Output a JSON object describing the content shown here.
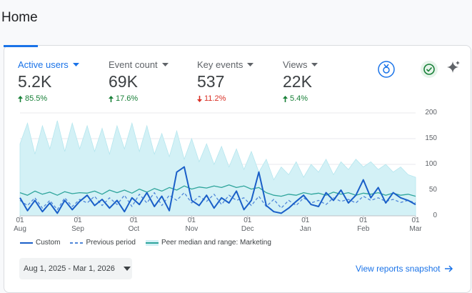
{
  "page_title": "Home",
  "metrics": [
    {
      "label": "Active users",
      "value": "5.2K",
      "change": "85.5%",
      "direction": "up",
      "active": true
    },
    {
      "label": "Event count",
      "value": "69K",
      "change": "17.6%",
      "direction": "up",
      "active": false
    },
    {
      "label": "Key events",
      "value": "537",
      "change": "11.2%",
      "direction": "down",
      "active": false
    },
    {
      "label": "Views",
      "value": "22K",
      "change": "5.4%",
      "direction": "up",
      "active": false
    }
  ],
  "chart_data": {
    "type": "line",
    "x": [
      0,
      4,
      8,
      12,
      16,
      20,
      24,
      28,
      32,
      36,
      40,
      44,
      48,
      52,
      56,
      60,
      64,
      68,
      72,
      76,
      80,
      84,
      88,
      92,
      96,
      100,
      104,
      108,
      112,
      116,
      120,
      124,
      128,
      132,
      136,
      140,
      144,
      148,
      152,
      156,
      160,
      164,
      168,
      172,
      176,
      180,
      184,
      188,
      192,
      196,
      200,
      204,
      208,
      212
    ],
    "xlim": [
      0,
      212
    ],
    "xticks": [
      {
        "value": 0,
        "label": "01\nAug"
      },
      {
        "value": 31,
        "label": "01\nSep"
      },
      {
        "value": 61,
        "label": "01\nOct"
      },
      {
        "value": 92,
        "label": "01\nNov"
      },
      {
        "value": 122,
        "label": "01\nDec"
      },
      {
        "value": 153,
        "label": "01\nJan"
      },
      {
        "value": 184,
        "label": "01\nFeb"
      },
      {
        "value": 212,
        "label": "01\nMar"
      }
    ],
    "ylim": [
      0,
      200
    ],
    "yticks": [
      0,
      50,
      100,
      150,
      200
    ],
    "grid": true,
    "series": [
      {
        "name": "Custom",
        "color": "#1a5fc8",
        "style": "solid",
        "values": [
          35,
          10,
          30,
          8,
          25,
          5,
          30,
          12,
          28,
          40,
          20,
          32,
          15,
          30,
          8,
          35,
          22,
          45,
          18,
          38,
          10,
          85,
          95,
          30,
          20,
          40,
          15,
          35,
          25,
          48,
          12,
          30,
          85,
          20,
          8,
          5,
          15,
          28,
          40,
          22,
          18,
          45,
          30,
          50,
          25,
          40,
          70,
          35,
          55,
          25,
          45,
          35,
          30,
          22
        ]
      },
      {
        "name": "Previous period",
        "color": "#4f86d9",
        "style": "dashed",
        "values": [
          30,
          20,
          35,
          15,
          30,
          12,
          35,
          18,
          32,
          25,
          38,
          20,
          35,
          22,
          40,
          18,
          42,
          25,
          45,
          20,
          40,
          30,
          45,
          25,
          38,
          28,
          42,
          22,
          40,
          30,
          35,
          20,
          38,
          18,
          32,
          15,
          30,
          20,
          35,
          25,
          30,
          22,
          35,
          28,
          32,
          25,
          38,
          30,
          35,
          28,
          32,
          26,
          30,
          25
        ]
      },
      {
        "name": "Peer median and range: Marketing",
        "color": "#2fa59c",
        "style": "range",
        "range_color": "#d3f1f6",
        "values": [
          45,
          40,
          48,
          42,
          46,
          40,
          47,
          43,
          45,
          44,
          48,
          42,
          50,
          45,
          50,
          44,
          52,
          46,
          53,
          48,
          55,
          50,
          58,
          52,
          56,
          54,
          58,
          55,
          60,
          55,
          58,
          52,
          55,
          45,
          40,
          38,
          42,
          40,
          45,
          42,
          44,
          40,
          46,
          42,
          45,
          40,
          44,
          42,
          45,
          40,
          44,
          40,
          42,
          38
        ],
        "upper": [
          140,
          180,
          120,
          175,
          130,
          185,
          125,
          180,
          130,
          175,
          125,
          170,
          120,
          175,
          130,
          180,
          125,
          175,
          120,
          160,
          115,
          165,
          110,
          150,
          105,
          140,
          100,
          135,
          95,
          130,
          90,
          125,
          85,
          110,
          70,
          95,
          80,
          105,
          75,
          100,
          85,
          110,
          80,
          105,
          90,
          110,
          95,
          105,
          90,
          100,
          85,
          95,
          80,
          75
        ]
      }
    ]
  },
  "date_range": "Aug 1, 2025 - Mar 1, 2026",
  "link": "View reports snapshot"
}
